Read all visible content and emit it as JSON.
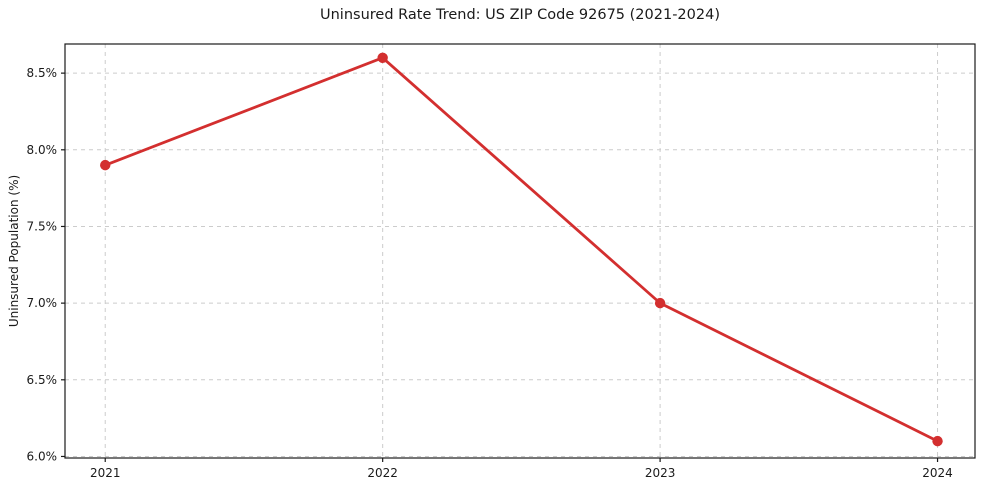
{
  "chart_data": {
    "type": "line",
    "title": "Uninsured Rate Trend: US ZIP Code 92675 (2021-2024)",
    "xlabel": "",
    "ylabel": "Uninsured Population (%)",
    "series": [
      {
        "name": "Uninsured Population (%)",
        "x": [
          2021,
          2022,
          2023,
          2024
        ],
        "values": [
          7.9,
          8.6,
          7.0,
          6.1
        ]
      }
    ],
    "x_tick_labels": [
      "2021",
      "2022",
      "2023",
      "2024"
    ],
    "y_ticks": [
      6.0,
      6.5,
      7.0,
      7.5,
      8.0,
      8.5
    ],
    "y_tick_labels": [
      "6.0%",
      "6.5%",
      "7.0%",
      "7.5%",
      "8.0%",
      "8.5%"
    ],
    "xlim": [
      2020.855,
      2024.135
    ],
    "ylim": [
      5.99,
      8.69
    ],
    "grid": true,
    "grid_style": "dashed",
    "legend_position": "none",
    "line_color": "#d32f2f",
    "marker_color": "#d32f2f",
    "marker_shape": "circle",
    "grid_color": "#cccccc",
    "axis_color": "#1a1a1a",
    "text_color": "#1a1a1a",
    "background_color": "#ffffff"
  }
}
